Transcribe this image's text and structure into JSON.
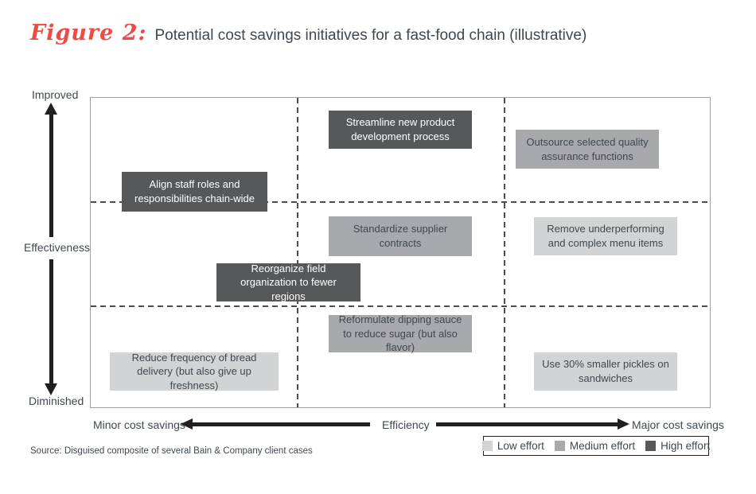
{
  "figure": {
    "label": "Figure 2:",
    "title": "Potential cost savings initiatives for a fast-food chain (illustrative)"
  },
  "y_axis": {
    "top": "Improved",
    "axis_name": "Effectiveness",
    "bottom": "Diminished"
  },
  "x_axis": {
    "left": "Minor cost savings",
    "axis_name": "Efficiency",
    "right": "Major cost savings"
  },
  "legend": {
    "items": [
      {
        "label": "Low effort",
        "color": "#d2d3d4"
      },
      {
        "label": "Medium effort",
        "color": "#a7a9ac"
      },
      {
        "label": "High effort",
        "color": "#57585a"
      }
    ],
    "position": "bottom-right"
  },
  "source": "Source: Disguised composite of several Bain & Company client cases",
  "palette": {
    "low_effort": "#d2d3d4",
    "medium_effort": "#a7a9ac",
    "high_effort": "#57585a",
    "accent_red": "#ef4a46",
    "text": "#3f4850",
    "arrow_black": "#231f20",
    "plot_border": "#9d9fa2"
  },
  "chart_data": {
    "type": "scatter",
    "title": "Potential cost savings initiatives for a fast-food chain (illustrative)",
    "xlabel": "Efficiency (Minor cost savings to Major cost savings)",
    "ylabel": "Effectiveness (Diminished to Improved)",
    "grid": "3x3 dashed matrix, internal lines at 1/3 and 2/3 of each axis",
    "legend_position": "bottom-right",
    "x_range": [
      0,
      1
    ],
    "y_range": [
      0,
      1
    ],
    "initiatives": [
      {
        "label": "Align staff roles and responsibilities chain-wide",
        "effort": "High effort",
        "x": 0.17,
        "y": 0.7
      },
      {
        "label": "Streamline new product development process",
        "effort": "High effort",
        "x": 0.5,
        "y": 0.9
      },
      {
        "label": "Outsource selected quality assurance functions",
        "effort": "Medium effort",
        "x": 0.8,
        "y": 0.84
      },
      {
        "label": "Standardize supplier contracts",
        "effort": "Medium effort",
        "x": 0.5,
        "y": 0.56
      },
      {
        "label": "Remove underperforming and complex menu items",
        "effort": "Low effort",
        "x": 0.83,
        "y": 0.56
      },
      {
        "label": "Reorganize field organization to fewer regions",
        "effort": "High effort",
        "x": 0.32,
        "y": 0.41
      },
      {
        "label": "Reformulate dipping sauce to reduce sugar (but also flavor)",
        "effort": "Medium effort",
        "x": 0.5,
        "y": 0.24
      },
      {
        "label": "Reduce frequency of bread delivery (but also give up freshness)",
        "effort": "Low effort",
        "x": 0.17,
        "y": 0.12
      },
      {
        "label": "Use 30% smaller pickles on sandwiches",
        "effort": "Low effort",
        "x": 0.83,
        "y": 0.12
      }
    ]
  }
}
